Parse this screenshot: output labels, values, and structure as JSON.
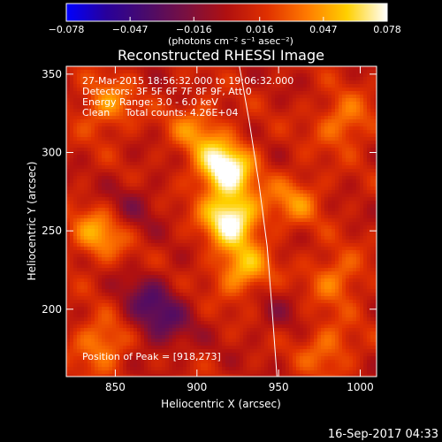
{
  "chart_data": {
    "type": "heatmap",
    "title": "Reconstructed RHESSI Image",
    "xlabel": "Heliocentric X (arcsec)",
    "ylabel": "Heliocentric Y (arcsec)",
    "xlim": [
      820,
      1010
    ],
    "ylim": [
      157,
      355
    ],
    "x_ticks": [
      850,
      900,
      950,
      1000
    ],
    "y_ticks": [
      200,
      250,
      300,
      350
    ],
    "colorbar": {
      "min": -0.078,
      "max": 0.078,
      "tick_values": [
        -0.078,
        -0.047,
        -0.016,
        0.016,
        0.047,
        0.078
      ],
      "tick_labels": [
        "−0.078",
        "−0.047",
        "−0.016",
        "0.016",
        "0.047",
        "0.078"
      ],
      "unit_label": "(photons cm⁻² s⁻¹ asec⁻²)",
      "stops": [
        "#0000ff",
        "#28009a",
        "#4a0b6a",
        "#7a1040",
        "#b01010",
        "#e03000",
        "#ff7a00",
        "#ffd000",
        "#ffffff"
      ]
    },
    "annotations": [
      "27-Mar-2015 18:56:32.000 to 19:06:32.000",
      "Detectors: 3F 5F 6F 7F 8F 9F, Att 0",
      "Energy Range: 3.0 - 6.0 keV",
      "Clean     Total counts: 4.26E+04"
    ],
    "peak_label": "Position of Peak = [918,273]",
    "peak": [
      918,
      273
    ],
    "limb_arc": [
      [
        926,
        355
      ],
      [
        932,
        320
      ],
      [
        938,
        280
      ],
      [
        943,
        240
      ],
      [
        946,
        200
      ],
      [
        949,
        157
      ]
    ],
    "sources": [
      {
        "x": 917,
        "y": 290,
        "value": 0.075
      },
      {
        "x": 921,
        "y": 258,
        "value": 0.072
      },
      {
        "x": 928,
        "y": 225,
        "value": 0.045
      },
      {
        "x": 900,
        "y": 315,
        "value": 0.03
      },
      {
        "x": 840,
        "y": 248,
        "value": 0.04
      },
      {
        "x": 842,
        "y": 178,
        "value": 0.035
      },
      {
        "x": 960,
        "y": 270,
        "value": 0.03
      },
      {
        "x": 990,
        "y": 320,
        "value": 0.032
      },
      {
        "x": 985,
        "y": 220,
        "value": 0.03
      },
      {
        "x": 980,
        "y": 175,
        "value": 0.028
      },
      {
        "x": 845,
        "y": 330,
        "value": 0.034
      },
      {
        "x": 870,
        "y": 205,
        "value": -0.03
      },
      {
        "x": 880,
        "y": 190,
        "value": -0.028
      },
      {
        "x": 860,
        "y": 265,
        "value": -0.018
      },
      {
        "x": 948,
        "y": 200,
        "value": -0.012
      }
    ]
  },
  "footer": {
    "timestamp": "16-Sep-2017 04:33"
  }
}
